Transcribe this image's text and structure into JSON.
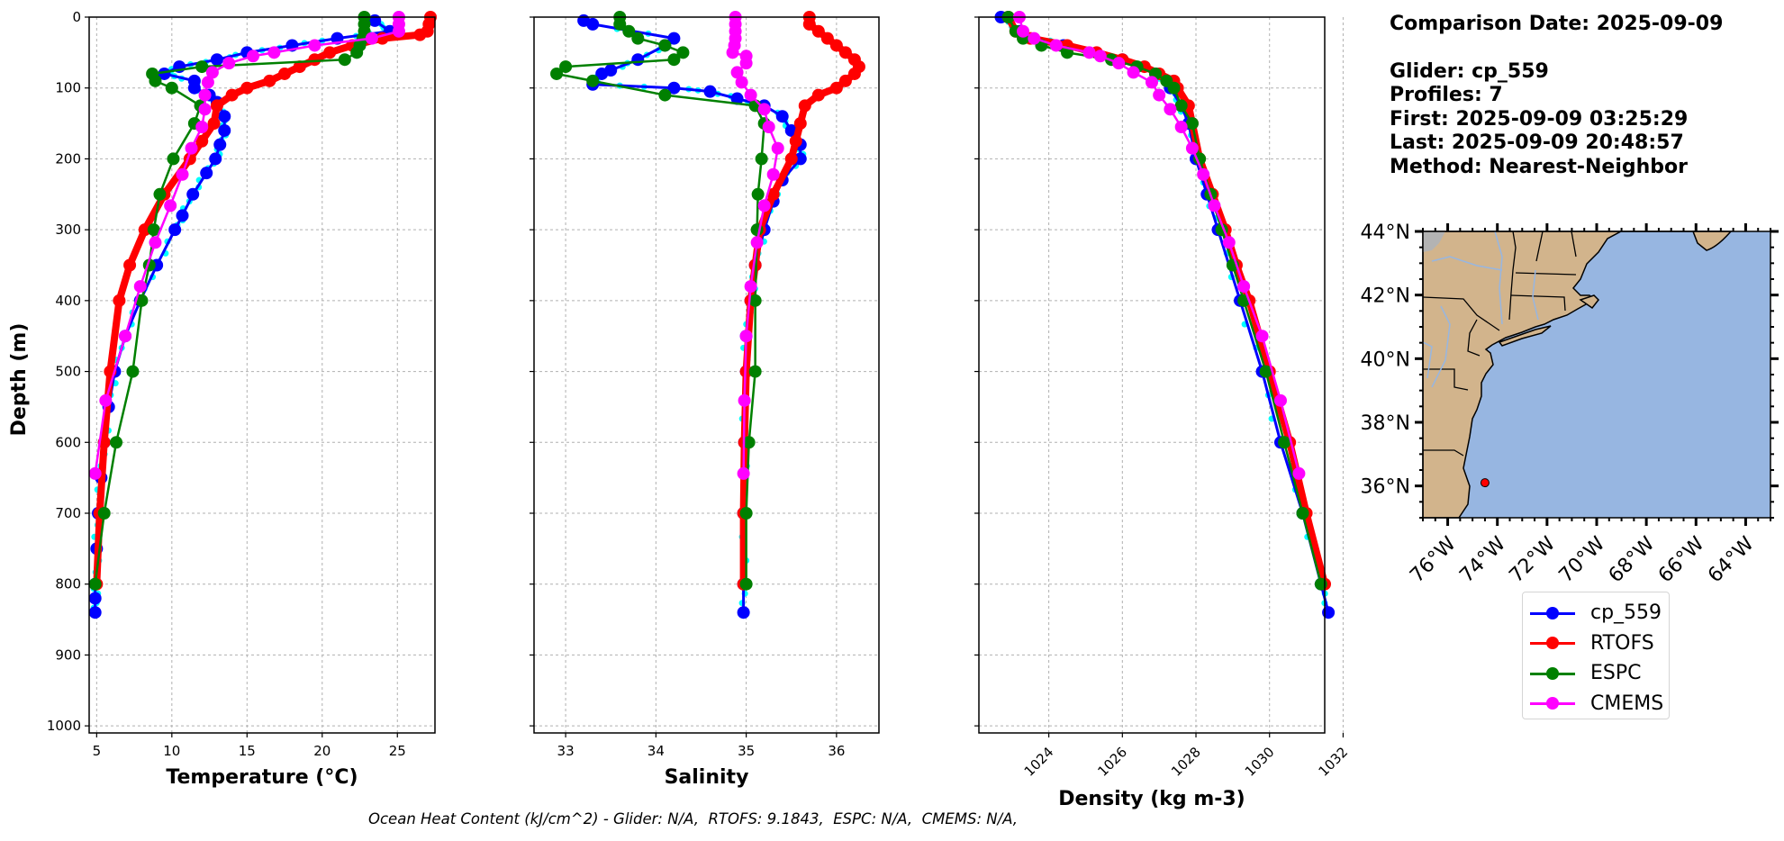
{
  "info": {
    "comparison_date": "Comparison Date: 2025-09-09",
    "glider": "Glider: cp_559",
    "profiles": "Profiles: 7",
    "first": "First: 2025-09-09 03:25:29",
    "last": "Last: 2025-09-09 20:48:57",
    "method": "Method: Nearest-Neighbor"
  },
  "footer": "Ocean Heat Content (kJ/cm^2) - Glider: N/A,  RTOFS: 9.1843,  ESPC: N/A,  CMEMS: N/A,",
  "legend": [
    {
      "label": "cp_559",
      "color": "#0000ff"
    },
    {
      "label": "RTOFS",
      "color": "#ff0000"
    },
    {
      "label": "ESPC",
      "color": "#008000"
    },
    {
      "label": "CMEMS",
      "color": "#ff00ff"
    }
  ],
  "colors": {
    "glider_raw": "#00ffff",
    "land": "#d2b48c",
    "ocean": "#97b6e1",
    "grid": "#b0b0b0"
  },
  "chart_data": [
    {
      "type": "line",
      "title": "",
      "xlabel": "Temperature (°C)",
      "ylabel": "Depth (m)",
      "xlim": [
        4.5,
        27.5
      ],
      "ylim": [
        1010,
        0
      ],
      "xticks": [
        5,
        10,
        15,
        20,
        25
      ],
      "yticks": [
        0,
        100,
        200,
        300,
        400,
        500,
        600,
        700,
        800,
        900,
        1000
      ],
      "grid": true,
      "series": [
        {
          "name": "cp_559",
          "depth": [
            5,
            20,
            30,
            40,
            50,
            60,
            70,
            80,
            90,
            100,
            110,
            120,
            140,
            160,
            180,
            200,
            220,
            250,
            280,
            300,
            350,
            400,
            450,
            500,
            550,
            600,
            650,
            700,
            750,
            800,
            820,
            840
          ],
          "values": [
            23.5,
            24.5,
            21,
            18,
            15,
            13,
            10.5,
            9.5,
            11.5,
            11.5,
            12.5,
            13,
            13.5,
            13.5,
            13.2,
            12.9,
            12.3,
            11.4,
            10.7,
            10.2,
            9.0,
            7.9,
            6.9,
            6.2,
            5.8,
            5.5,
            5.3,
            5.1,
            5.0,
            4.9,
            4.9,
            4.9
          ]
        },
        {
          "name": "RTOFS",
          "depth": [
            0,
            10,
            20,
            25,
            30,
            40,
            50,
            60,
            70,
            80,
            90,
            100,
            110,
            125,
            150,
            175,
            200,
            250,
            300,
            350,
            400,
            500,
            600,
            700,
            800
          ],
          "values": [
            27.2,
            27.1,
            27,
            26.5,
            24,
            22,
            20.5,
            19.5,
            18.5,
            17.5,
            16.5,
            15,
            14,
            13,
            12.8,
            12.0,
            11.2,
            9.5,
            8.2,
            7.2,
            6.5,
            5.9,
            5.5,
            5.2,
            5.0
          ]
        },
        {
          "name": "ESPC",
          "depth": [
            0,
            10,
            20,
            30,
            40,
            50,
            60,
            70,
            80,
            90,
            100,
            125,
            150,
            200,
            250,
            300,
            350,
            400,
            500,
            600,
            700,
            800
          ],
          "values": [
            22.8,
            22.8,
            22.8,
            22.7,
            22.5,
            22.3,
            21.5,
            12,
            8.7,
            8.9,
            10,
            11.9,
            11.5,
            10.1,
            9.2,
            8.8,
            8.5,
            8.0,
            7.4,
            6.3,
            5.5,
            4.9
          ]
        },
        {
          "name": "CMEMS",
          "depth": [
            0,
            10,
            20,
            30,
            40,
            50,
            55,
            65,
            78,
            92,
            110,
            130,
            155,
            185,
            222,
            266,
            318,
            380,
            450,
            541,
            644
          ],
          "values": [
            25.1,
            25.1,
            25.1,
            23.3,
            19.5,
            16.8,
            15.4,
            13.8,
            12.7,
            12.4,
            12.2,
            12.2,
            12.0,
            11.3,
            10.7,
            9.9,
            8.9,
            7.9,
            6.9,
            5.6,
            4.9
          ]
        }
      ]
    },
    {
      "type": "line",
      "title": "",
      "xlabel": "Salinity",
      "ylabel": "",
      "xlim": [
        32.65,
        36.47
      ],
      "ylim": [
        1010,
        0
      ],
      "xticks": [
        33,
        34,
        35,
        36
      ],
      "grid": true,
      "series": [
        {
          "name": "cp_559",
          "depth": [
            5,
            10,
            30,
            40,
            60,
            75,
            80,
            95,
            100,
            105,
            115,
            125,
            140,
            160,
            180,
            200,
            230,
            260,
            300,
            350,
            400,
            450,
            500,
            600,
            700,
            800,
            840
          ],
          "values": [
            33.2,
            33.3,
            34.2,
            34.1,
            33.8,
            33.5,
            33.4,
            33.3,
            34.2,
            34.6,
            34.9,
            35.2,
            35.4,
            35.5,
            35.6,
            35.6,
            35.4,
            35.3,
            35.2,
            35.1,
            35.05,
            35.0,
            35.0,
            34.98,
            34.97,
            34.97,
            34.97
          ]
        },
        {
          "name": "RTOFS",
          "depth": [
            0,
            10,
            20,
            30,
            40,
            50,
            60,
            70,
            80,
            90,
            100,
            110,
            125,
            150,
            175,
            200,
            250,
            300,
            350,
            400,
            500,
            600,
            700,
            800
          ],
          "values": [
            35.7,
            35.7,
            35.8,
            35.9,
            36.0,
            36.1,
            36.2,
            36.25,
            36.2,
            36.1,
            36.0,
            35.8,
            35.65,
            35.6,
            35.55,
            35.5,
            35.3,
            35.15,
            35.1,
            35.05,
            35.0,
            34.98,
            34.97,
            34.97
          ]
        },
        {
          "name": "ESPC",
          "depth": [
            0,
            10,
            20,
            30,
            40,
            50,
            60,
            70,
            80,
            90,
            110,
            125,
            150,
            200,
            250,
            300,
            400,
            500,
            600,
            700,
            800
          ],
          "values": [
            33.6,
            33.6,
            33.7,
            33.8,
            34.1,
            34.3,
            34.2,
            33.0,
            32.9,
            33.3,
            34.1,
            35.1,
            35.2,
            35.17,
            35.13,
            35.12,
            35.1,
            35.1,
            35.03,
            35.0,
            35.0
          ]
        },
        {
          "name": "CMEMS",
          "depth": [
            0,
            10,
            20,
            30,
            40,
            50,
            55,
            65,
            78,
            92,
            110,
            130,
            155,
            185,
            222,
            266,
            318,
            380,
            450,
            541,
            644
          ],
          "values": [
            34.88,
            34.88,
            34.88,
            34.88,
            34.87,
            34.85,
            35.0,
            35.0,
            34.9,
            34.95,
            35.05,
            35.2,
            35.25,
            35.35,
            35.3,
            35.2,
            35.12,
            35.05,
            35.0,
            34.98,
            34.97
          ]
        }
      ]
    },
    {
      "type": "line",
      "title": "",
      "xlabel": "Density (kg m-3)",
      "ylabel": "",
      "xlim": [
        1022.1,
        1031.5
      ],
      "ylim": [
        1010,
        0
      ],
      "xticks": [
        1024,
        1026,
        1028,
        1030,
        1032
      ],
      "grid": true,
      "series": [
        {
          "name": "cp_559",
          "depth": [
            0,
            20,
            40,
            60,
            80,
            100,
            125,
            150,
            200,
            250,
            300,
            400,
            500,
            600,
            700,
            800,
            840
          ],
          "values": [
            1022.7,
            1023.2,
            1024.4,
            1026.0,
            1026.9,
            1027.3,
            1027.6,
            1027.8,
            1028.0,
            1028.3,
            1028.6,
            1029.2,
            1029.8,
            1030.3,
            1030.9,
            1031.4,
            1031.6
          ]
        },
        {
          "name": "RTOFS",
          "depth": [
            0,
            20,
            30,
            40,
            50,
            60,
            70,
            80,
            90,
            100,
            125,
            150,
            200,
            250,
            300,
            350,
            400,
            500,
            600,
            700,
            800
          ],
          "values": [
            1022.9,
            1023.1,
            1023.5,
            1024.5,
            1025.3,
            1026.0,
            1026.6,
            1027.0,
            1027.4,
            1027.5,
            1027.8,
            1027.9,
            1028.1,
            1028.45,
            1028.8,
            1029.1,
            1029.45,
            1030.0,
            1030.55,
            1031.0,
            1031.5
          ]
        },
        {
          "name": "ESPC",
          "depth": [
            0,
            20,
            30,
            40,
            50,
            60,
            70,
            80,
            90,
            100,
            125,
            150,
            200,
            250,
            300,
            350,
            400,
            500,
            600,
            700,
            800
          ],
          "values": [
            1022.9,
            1023.1,
            1023.3,
            1023.8,
            1024.5,
            1025.7,
            1026.4,
            1026.9,
            1027.2,
            1027.4,
            1027.6,
            1027.9,
            1028.1,
            1028.4,
            1028.7,
            1029.0,
            1029.3,
            1029.9,
            1030.4,
            1030.9,
            1031.4
          ]
        },
        {
          "name": "CMEMS",
          "depth": [
            0,
            20,
            30,
            40,
            50,
            55,
            65,
            78,
            92,
            110,
            130,
            155,
            185,
            222,
            266,
            318,
            380,
            450,
            541,
            644
          ],
          "values": [
            1023.2,
            1023.3,
            1023.6,
            1024.2,
            1025.1,
            1025.4,
            1025.9,
            1026.3,
            1026.8,
            1027.0,
            1027.3,
            1027.6,
            1027.9,
            1028.2,
            1028.5,
            1028.9,
            1029.3,
            1029.8,
            1030.3,
            1030.8
          ]
        }
      ]
    },
    {
      "type": "scatter",
      "title": "",
      "xlabel": "",
      "ylabel": "",
      "xlim": [
        -77,
        -63
      ],
      "ylim": [
        35,
        44
      ],
      "xticks": [
        "76°W",
        "74°W",
        "72°W",
        "70°W",
        "68°W",
        "66°W",
        "64°W"
      ],
      "yticks": [
        "36°N",
        "38°N",
        "40°N",
        "42°N",
        "44°N"
      ],
      "points": [
        {
          "name": "glider-location",
          "lon": -74.5,
          "lat": 36.1,
          "color": "#ff0000"
        }
      ]
    }
  ]
}
